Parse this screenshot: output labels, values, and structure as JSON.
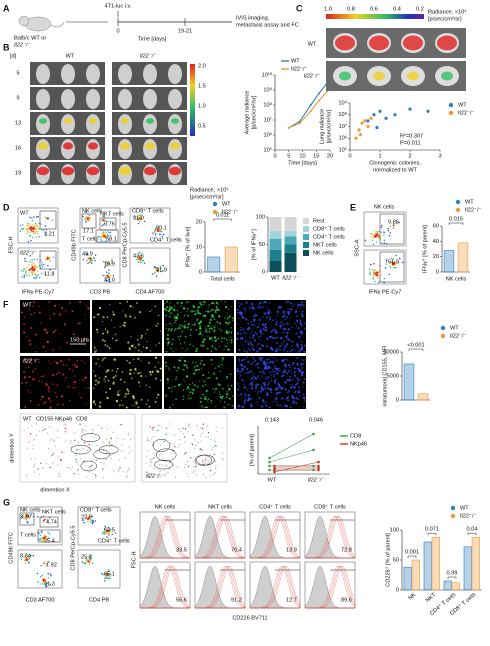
{
  "genotypes": [
    {
      "name": "WT",
      "color": "#2f7fc1"
    },
    {
      "name": "Il22⁻/⁻",
      "color": "#ee9a3a"
    }
  ],
  "A": {
    "label": "A",
    "cells": "4T1-luc i.v.",
    "host": "Balb/c WT or",
    "t0": "0",
    "t1": "19-21",
    "time": "Time [days]",
    "outcome": [
      "IVIS imaging,",
      "metastasis assay and FC"
    ]
  },
  "B": {
    "label": "B",
    "day_header": "[d]",
    "days": [
      "5",
      "9",
      "13",
      "16",
      "19"
    ],
    "colorbar": [
      "2.0",
      "1.5",
      "1.0",
      "0.5"
    ],
    "radiance": [
      "Radiance, ×10⁹",
      "[p/sec/cm²/sr]"
    ],
    "chart": {
      "type": "line",
      "ylabel": [
        "Average radiance",
        "[p/sec/cm²/sr]"
      ],
      "xlabel": "Time [days]",
      "p": "0.031",
      "log": true,
      "x": [
        5,
        9,
        13,
        16,
        19
      ],
      "xlim": [
        0,
        20
      ],
      "xticks": [
        0,
        5,
        10,
        15,
        20
      ],
      "ylim": [
        100000,
        10000000000
      ],
      "yticks": [
        {
          "value": 100000,
          "label": "10⁵"
        },
        {
          "value": 1000000,
          "label": "10⁶"
        },
        {
          "value": 10000000,
          "label": "10⁷"
        },
        {
          "value": 100000000,
          "label": "10⁸"
        },
        {
          "value": 1000000000,
          "label": "10⁹"
        },
        {
          "value": 10000000000,
          "label": "10¹⁰"
        }
      ],
      "series": [
        {
          "name": "WT",
          "color": "#2f7fc1",
          "values": [
            3000000,
            8000000,
            100000000,
            600000000,
            3000000000
          ]
        },
        {
          "name": "Il22⁻/⁻",
          "color": "#ee9a3a",
          "values": [
            3000000,
            6000000,
            40000000,
            200000000,
            800000000
          ]
        }
      ]
    }
  },
  "C": {
    "label": "C",
    "colorbar": [
      "1.0",
      "0.8",
      "0.6",
      "0.4",
      "0.2"
    ],
    "radiance": [
      "Radiance, ×10⁹",
      "[p/sec/cm²/sr]"
    ],
    "chart": {
      "type": "scatter",
      "ylabel": [
        "Lung radiance",
        "[p/sec/cm²/sr]"
      ],
      "xlabel": [
        "Clonogenic colonies,",
        "normalized to WT"
      ],
      "r2": "R²=0.307",
      "p": "P=0.011",
      "log": true,
      "xlim": [
        0,
        3
      ],
      "xticks": [
        0,
        1,
        2,
        3
      ],
      "ylim": [
        100000,
        1000000000
      ],
      "yticks": [
        {
          "value": 100000,
          "label": "10⁵"
        },
        {
          "value": 1000000,
          "label": "10⁶"
        },
        {
          "value": 10000000,
          "label": "10⁷"
        },
        {
          "value": 100000000,
          "label": "10⁸"
        },
        {
          "value": 1000000000,
          "label": "10⁹"
        }
      ],
      "series": [
        {
          "name": "WT",
          "color": "#2f7fc1",
          "x": [
            0.6,
            0.8,
            1.0,
            1.2,
            1.5,
            2.0,
            2.6,
            0.9
          ],
          "values": [
            30000000,
            100000000,
            200000000,
            50000000,
            100000000,
            300000000,
            200000000,
            8000000
          ]
        },
        {
          "name": "Il22⁻/⁻",
          "color": "#ee9a3a",
          "x": [
            0.2,
            0.3,
            0.4,
            0.5,
            0.6,
            0.7,
            0.35
          ],
          "values": [
            1000000,
            5000000,
            20000000,
            30000000,
            10000000,
            50000000,
            2000000
          ]
        }
      ]
    }
  },
  "D": {
    "label": "D",
    "wt_pct": "2.21",
    "ko_pct": "11.8",
    "fsc": "FSC-H",
    "ifng": "IFNγ PE-Cy7",
    "nk": "NK cells",
    "nk_pct": "17.1",
    "nkt": "NKT cells",
    "nkt_pct": "6.76",
    "tcells": "T cells",
    "t_pct": "59.1",
    "cd3_plot": [
      "49.9",
      "10.9",
      "33.0"
    ],
    "cd49b": "CD49b FITC",
    "cd3": "CD3 PB",
    "cd8": "CD8⁺ T cells",
    "cd8_pct": "31.0",
    "cd4": "CD4⁺ T cells",
    "cd4_pct": "50.1",
    "cd_plot2": [
      "43.6",
      "41.9"
    ],
    "cd8_axis": "CD8 PerCp-Cy5.5",
    "cd4_axis": "CD4 AF700",
    "bar": {
      "type": "bar",
      "p": "0.011",
      "ylabel": "IFNγ⁺ [% of live]",
      "xlabel": "Total cells",
      "ylim": [
        0,
        20
      ],
      "yticks": [
        0,
        10,
        20
      ],
      "values": [
        6,
        10
      ]
    },
    "stack": {
      "type": "stacked_bar",
      "ylabel": "[% of IFNγ⁺]",
      "ylim": [
        0,
        100
      ],
      "yticks": [
        0,
        50,
        100
      ],
      "series": [
        {
          "name": "NK cells",
          "color": "#0e4d5a",
          "values": [
            20,
            35
          ]
        },
        {
          "name": "NKT cells",
          "color": "#1b7f8c",
          "values": [
            20,
            15
          ]
        },
        {
          "name": "CD4⁺ T cells",
          "color": "#4fa8b8",
          "values": [
            20,
            15
          ]
        },
        {
          "name": "CD8⁺ T cells",
          "color": "#9fd4df",
          "values": [
            15,
            10
          ]
        },
        {
          "name": "Rest",
          "color": "#d6d6d6",
          "values": [
            25,
            25
          ]
        }
      ]
    }
  },
  "E": {
    "label": "E",
    "title": "NK cells",
    "pcts": [
      "9.86",
      "51.9"
    ],
    "ssc": "SSC-A",
    "ifng": "IFNγ PE-Cy7",
    "bar": {
      "type": "bar",
      "p": "0.015",
      "ylabel": "IFNγ⁺ [% of parent]",
      "xlabel": "NK cells",
      "ylim": [
        0,
        60
      ],
      "yticks": [
        0,
        20,
        40,
        60
      ],
      "values": [
        28,
        38
      ]
    }
  },
  "F": {
    "label": "F",
    "channels": [
      "NKp46",
      "CD8",
      "CD155",
      "DAPI"
    ],
    "scale": "150 µm",
    "bar": {
      "type": "bar",
      "p": "<0.001",
      "ylabel": "intratumoral CD155, MFI",
      "ylim": [
        0,
        10000
      ],
      "yticks": [
        0,
        5000,
        10000
      ],
      "values": [
        7500,
        1300
      ]
    },
    "tsne": {
      "legend": [
        "CD155",
        "NKp46",
        "CD8"
      ],
      "ylabel": "dimention Y",
      "xlabel": "dimention X"
    },
    "paired": {
      "type": "paired",
      "ylabel": "[% of parent]",
      "p": [
        "0.143",
        "0.046"
      ],
      "ylim": [
        0,
        12
      ],
      "series": [
        {
          "name": "CD8",
          "color": "#3aa655",
          "wt": [
            3,
            4,
            2,
            1
          ],
          "ko": [
            6,
            10,
            2,
            1
          ]
        },
        {
          "name": "NKp46",
          "color": "#c0392b",
          "wt": [
            1,
            2,
            1.5,
            0.5
          ],
          "ko": [
            1,
            2,
            1.5,
            3
          ]
        }
      ]
    }
  },
  "G": {
    "label": "G",
    "nk": "NK cells",
    "nk_pct": "3.79",
    "nkt": "NKT cells",
    "nkt_pct": "4.74",
    "t": "T cells",
    "t_pct": "25.4",
    "ko_pcts": [
      "8.84",
      "1.92",
      "41.3"
    ],
    "cd49b": "CD49b FITC",
    "cd3": "CD3 AF700",
    "cd8": "CD8⁺ T cells",
    "cd8_pct": "22.5",
    "cd4": "CD4⁺ T cells",
    "cd4_pct": "64.5",
    "ko_cd": [
      "25.2",
      "65.1"
    ],
    "cd8_axis": "CD8 PerCp-Cy5.5",
    "cd4_axis": "CD4 PB",
    "hist": {
      "titles": [
        "NK cells",
        "NKT cells",
        "CD4⁺ T cells",
        "CD8⁺ T cells"
      ],
      "wt": [
        "33.5",
        "76.4",
        "13.9",
        "72.8"
      ],
      "ko": [
        "56.6",
        "91.2",
        "12.7",
        "89.6"
      ],
      "fsc": "FSC-H",
      "xlabel": "CD226 BV711"
    },
    "bar": {
      "type": "grouped_bar",
      "categories": [
        "NK",
        "NKT",
        "CD4⁺ T cells",
        "CD8⁺ T cells"
      ],
      "p": [
        "0.001",
        "0.071",
        "0.99",
        "0.04"
      ],
      "ylabel": "CD226⁺ [% of parent]",
      "ylim": [
        0,
        100
      ],
      "yticks": [
        0,
        50,
        100
      ],
      "series": [
        {
          "name": "WT",
          "color": "#2f7fc1",
          "values": [
            38,
            80,
            15,
            72
          ]
        },
        {
          "name": "Il22⁻/⁻",
          "color": "#ee9a3a",
          "values": [
            50,
            88,
            12,
            88
          ]
        }
      ]
    }
  }
}
